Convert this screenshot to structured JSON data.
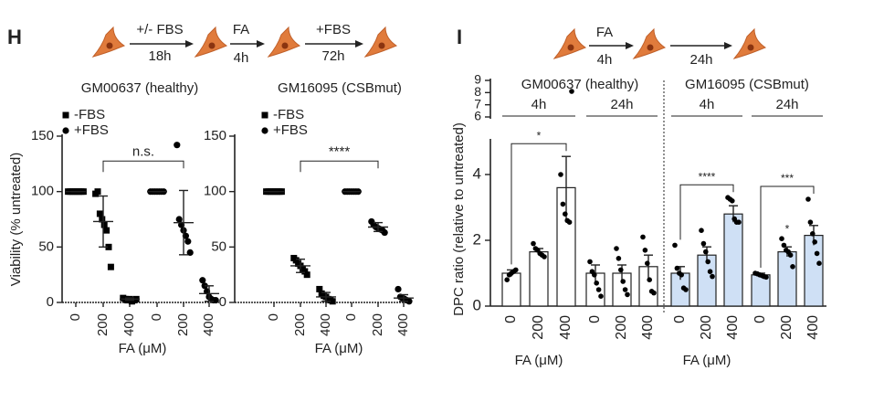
{
  "panel_labels": [
    "H",
    "I"
  ],
  "schematic_H": [
    "+/- FBS",
    "18h",
    "FA",
    "4h",
    "+FBS",
    "72h"
  ],
  "schematic_I": [
    "FA",
    "4h",
    "24h"
  ],
  "chart_data": [
    {
      "type": "dotplot",
      "title": "GM00637  (healthy)",
      "ylabel": "Viability (% untreated)",
      "xlabel": "FA (μM)",
      "categories": [
        "0",
        "200",
        "400",
        "0",
        "200",
        "400"
      ],
      "ylim": [
        0,
        150
      ],
      "yticks": [
        0,
        50,
        100,
        150
      ],
      "comparisons": [
        {
          "from": 1,
          "to": 4,
          "label": "n.s."
        }
      ],
      "series": [
        {
          "name": "-FBS",
          "marker": "square",
          "color": "#000000",
          "values": [
            {
              "points": [
                100,
                100,
                100,
                100,
                100,
                100,
                100,
                100
              ],
              "mean": 100,
              "error": 0
            },
            {
              "points": [
                98,
                100,
                80,
                75,
                70,
                65,
                50,
                32
              ],
              "mean": 73,
              "error": 23
            },
            {
              "points": [
                4,
                3,
                2,
                3,
                1,
                2,
                3
              ],
              "mean": 3,
              "error": 1
            },
            null,
            null,
            null
          ]
        },
        {
          "name": "+FBS",
          "marker": "circle",
          "color": "#000000",
          "values": [
            null,
            null,
            null,
            {
              "points": [
                100,
                100,
                100,
                100,
                100,
                100,
                100
              ],
              "mean": 100,
              "error": 0
            },
            {
              "points": [
                142,
                75,
                70,
                65,
                60,
                55,
                45
              ],
              "mean": 72,
              "error": 29
            },
            {
              "points": [
                20,
                15,
                10,
                5,
                3,
                2,
                2
              ],
              "mean": 8,
              "error": 7
            }
          ]
        }
      ]
    },
    {
      "type": "dotplot",
      "title": "GM16095  (CSBmut)",
      "xlabel": "FA (μM)",
      "categories": [
        "0",
        "200",
        "400",
        "0",
        "200",
        "400"
      ],
      "ylim": [
        0,
        150
      ],
      "yticks": [
        0,
        50,
        100,
        150
      ],
      "comparisons": [
        {
          "from": 1,
          "to": 4,
          "label": "****"
        }
      ],
      "series": [
        {
          "name": "-FBS",
          "marker": "square",
          "color": "#000000",
          "values": [
            {
              "points": [
                100,
                100,
                100,
                100,
                100,
                100,
                100,
                100
              ],
              "mean": 100,
              "error": 0
            },
            {
              "points": [
                40,
                38,
                35,
                33,
                30,
                28,
                25
              ],
              "mean": 33,
              "error": 6
            },
            {
              "points": [
                12,
                8,
                6,
                5,
                3,
                2,
                1
              ],
              "mean": 5,
              "error": 4
            },
            null,
            null,
            null
          ]
        },
        {
          "name": "+FBS",
          "marker": "circle",
          "color": "#000000",
          "values": [
            null,
            null,
            null,
            {
              "points": [
                100,
                100,
                100,
                100,
                100,
                100,
                100
              ],
              "mean": 100,
              "error": 0
            },
            {
              "points": [
                73,
                70,
                68,
                67,
                66,
                65,
                63
              ],
              "mean": 68,
              "error": 4
            },
            {
              "points": [
                12,
                5,
                4,
                3,
                2,
                1
              ],
              "mean": 4,
              "error": 3
            }
          ]
        }
      ]
    },
    {
      "type": "bar",
      "ylabel": "DPC ratio (relative to untreated)",
      "xlabels": [
        "FA (μM)",
        "FA (μM)"
      ],
      "categories": [
        "0",
        "200",
        "400",
        "0",
        "200",
        "400",
        "0",
        "200",
        "400",
        "0",
        "200",
        "400"
      ],
      "ylim": [
        0,
        5
      ],
      "yticks": [
        0,
        2,
        4
      ],
      "ybreak": {
        "ylim": [
          6,
          9
        ],
        "yticks": [
          6,
          7,
          8,
          9
        ]
      },
      "groups": [
        {
          "label": "GM00637  (healthy)",
          "from": 0,
          "to": 5
        },
        {
          "label": "GM16095  (CSBmut)",
          "from": 6,
          "to": 11
        }
      ],
      "subgroups": [
        {
          "label": "4h",
          "from": 0,
          "to": 2
        },
        {
          "label": "24h",
          "from": 3,
          "to": 5
        },
        {
          "label": "4h",
          "from": 6,
          "to": 8
        },
        {
          "label": "24h",
          "from": 9,
          "to": 11
        }
      ],
      "values": [
        1.0,
        1.65,
        3.6,
        1.0,
        1.0,
        1.2,
        1.0,
        1.55,
        2.8,
        0.95,
        1.65,
        2.15
      ],
      "errors": [
        0.1,
        0.1,
        0.95,
        0.25,
        0.25,
        0.35,
        0.2,
        0.25,
        0.25,
        0.05,
        0.15,
        0.3
      ],
      "points": [
        [
          0.8,
          0.95,
          1.0,
          1.05,
          1.1
        ],
        [
          1.9,
          1.75,
          1.7,
          1.6,
          1.55,
          1.5
        ],
        [
          4.0,
          3.1,
          2.8,
          2.6,
          2.55,
          8.1
        ],
        [
          1.35,
          1.05,
          0.95,
          0.7,
          0.5,
          0.3
        ],
        [
          1.75,
          1.45,
          1.1,
          0.75,
          0.5,
          0.35
        ],
        [
          2.1,
          1.7,
          1.3,
          0.8,
          0.45,
          0.4
        ],
        [
          1.85,
          1.15,
          1.0,
          0.95,
          0.55,
          0.5
        ],
        [
          2.3,
          1.9,
          1.65,
          1.35,
          1.05,
          0.9
        ],
        [
          3.3,
          3.25,
          3.2,
          2.65,
          2.55,
          2.55
        ],
        [
          1.0,
          0.98,
          0.95,
          0.93,
          0.9,
          0.88
        ],
        [
          2.05,
          1.85,
          1.7,
          1.65,
          1.55,
          1.2
        ],
        [
          3.25,
          2.55,
          2.2,
          1.95,
          1.6,
          1.3
        ]
      ],
      "bar_colors": [
        "#ffffff",
        "#ffffff",
        "#ffffff",
        "#ffffff",
        "#ffffff",
        "#ffffff",
        "#cfe0f5",
        "#cfe0f5",
        "#cfe0f5",
        "#cfe0f5",
        "#cfe0f5",
        "#cfe0f5"
      ],
      "point_color": "#000000",
      "comparisons": [
        {
          "from": 0,
          "to": 2,
          "label": "*"
        },
        {
          "from": 6,
          "to": 8,
          "label": "****"
        },
        {
          "from": 9,
          "to": 11,
          "label": "***"
        }
      ],
      "annotations": [
        {
          "category": 10,
          "label": "*"
        }
      ]
    }
  ]
}
